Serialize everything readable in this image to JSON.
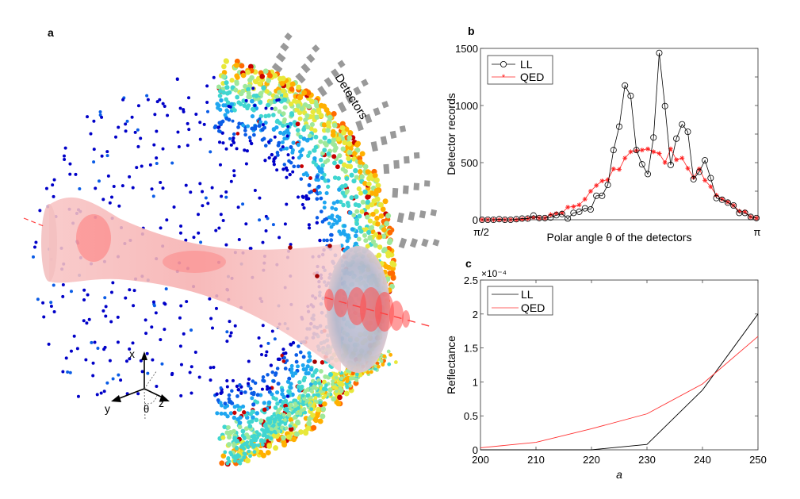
{
  "figure": {
    "panels": [
      {
        "id": "a",
        "label": "a"
      },
      {
        "id": "b",
        "label": "b"
      },
      {
        "id": "c",
        "label": "c"
      }
    ]
  },
  "panel_a": {
    "label": "a",
    "detectors_label": "Detectors",
    "axes_labels": {
      "x": "x",
      "y": "y",
      "z": "z",
      "theta": "θ"
    },
    "colors": {
      "beam": "#f7a5a5",
      "beam_core": "#ff5a5a",
      "detector": "#999999",
      "axis_line": "#ff4040"
    },
    "particle_colormap": [
      "#0000c8",
      "#0a5ce6",
      "#1ea6f0",
      "#40d6d0",
      "#9fe89a",
      "#e8e83a",
      "#ffb000",
      "#ff6a00",
      "#c80000"
    ]
  },
  "chart_data": [
    {
      "id": "b",
      "panel_label": "b",
      "type": "line",
      "title": "",
      "xlabel": "Polar angle θ of the detectors",
      "ylabel": "Detector records",
      "x_tick_labels": [
        "π/2",
        "π"
      ],
      "xlim": [
        "π/2",
        "π"
      ],
      "ylim": [
        0,
        1500
      ],
      "y_ticks": [
        0,
        500,
        1000,
        1500
      ],
      "grid": false,
      "legend": {
        "position": "top-left",
        "entries": [
          "LL",
          "QED"
        ]
      },
      "n_points": 49,
      "series": [
        {
          "name": "LL",
          "color": "#000000",
          "marker": "circle",
          "values": [
            0,
            0,
            0,
            5,
            0,
            0,
            5,
            10,
            10,
            37,
            15,
            15,
            20,
            40,
            50,
            10,
            60,
            70,
            100,
            90,
            210,
            210,
            305,
            610,
            815,
            1175,
            1085,
            610,
            485,
            400,
            720,
            1460,
            995,
            480,
            710,
            835,
            770,
            355,
            420,
            520,
            365,
            190,
            175,
            150,
            125,
            60,
            60,
            25,
            15
          ]
        },
        {
          "name": "QED",
          "color": "#ff2020",
          "marker": "asterisk",
          "values": [
            0,
            0,
            0,
            0,
            0,
            0,
            0,
            5,
            10,
            20,
            15,
            15,
            45,
            55,
            60,
            110,
            115,
            130,
            180,
            250,
            300,
            340,
            350,
            445,
            440,
            540,
            595,
            605,
            610,
            620,
            595,
            580,
            500,
            620,
            525,
            540,
            450,
            370,
            445,
            345,
            290,
            215,
            180,
            155,
            125,
            75,
            70,
            25,
            15
          ]
        }
      ]
    },
    {
      "id": "c",
      "panel_label": "c",
      "type": "line",
      "title": "",
      "xlabel": "a",
      "ylabel": "Reflectance",
      "y_multiplier": "×10⁻⁴",
      "x": [
        200,
        210,
        220,
        230,
        240,
        250
      ],
      "xlim": [
        200,
        250
      ],
      "ylim": [
        0,
        2.5
      ],
      "x_ticks": [
        200,
        210,
        220,
        230,
        240,
        250
      ],
      "y_ticks": [
        0,
        0.5,
        1,
        1.5,
        2,
        2.5
      ],
      "y_tick_labels": [
        "0",
        "0.5",
        "1",
        "1.5",
        "2",
        "2.5"
      ],
      "grid": false,
      "legend": {
        "position": "top-left",
        "entries": [
          "LL",
          "QED"
        ]
      },
      "series": [
        {
          "name": "LL",
          "color": "#000000",
          "values": [
            0.0,
            0.0,
            0.0,
            0.08,
            0.88,
            2.0
          ]
        },
        {
          "name": "QED",
          "color": "#ff3030",
          "values": [
            0.03,
            0.11,
            0.31,
            0.53,
            0.97,
            1.67
          ]
        }
      ]
    }
  ]
}
